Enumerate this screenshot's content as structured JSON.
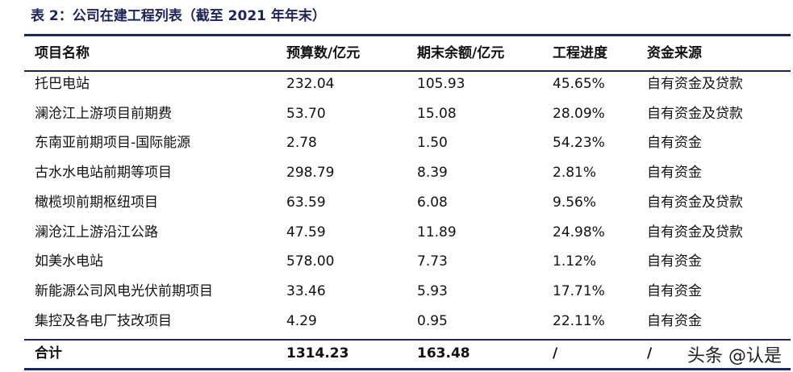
{
  "table": {
    "title": "表 2：公司在建工程列表（截至 2021 年年末）",
    "columns": [
      "项目名称",
      "预算数/亿元",
      "期末余额/亿元",
      "工程进度",
      "资金来源"
    ],
    "rows": [
      [
        "托巴电站",
        "232.04",
        "105.93",
        "45.65%",
        "自有资金及贷款"
      ],
      [
        "澜沧江上游项目前期费",
        "53.70",
        "15.08",
        "28.09%",
        "自有资金及贷款"
      ],
      [
        "东南亚前期项目-国际能源",
        "2.78",
        "1.50",
        "54.23%",
        "自有资金"
      ],
      [
        "古水水电站前期等项目",
        "298.79",
        "8.39",
        "2.81%",
        "自有资金"
      ],
      [
        "橄榄坝前期枢纽项目",
        "63.59",
        "6.08",
        "9.56%",
        "自有资金及贷款"
      ],
      [
        "澜沧江上游沿江公路",
        "47.59",
        "11.89",
        "24.98%",
        "自有资金及贷款"
      ],
      [
        "如美水电站",
        "578.00",
        "7.73",
        "1.12%",
        "自有资金"
      ],
      [
        "新能源公司风电光伏前期项目",
        "33.46",
        "5.93",
        "17.71%",
        "自有资金"
      ],
      [
        "集控及各电厂技改项目",
        "4.29",
        "0.95",
        "22.11%",
        "自有资金"
      ]
    ],
    "total": [
      "合计",
      "1314.23",
      "163.48",
      "/",
      "/"
    ]
  },
  "watermark": "头条 @认是"
}
